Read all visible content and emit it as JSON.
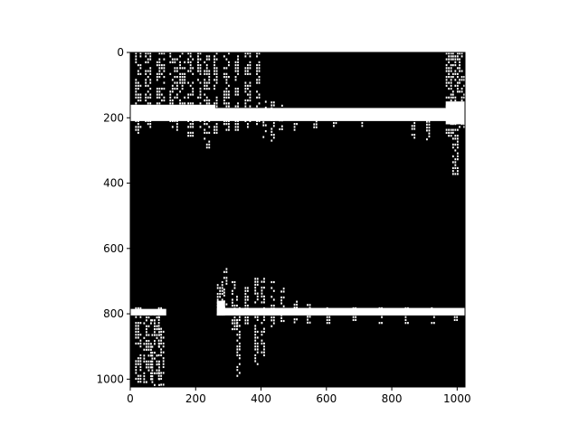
{
  "chart_data": {
    "type": "heatmap",
    "title": "",
    "xlabel": "",
    "ylabel": "",
    "xlim": [
      0,
      1024
    ],
    "ylim": [
      1024,
      0
    ],
    "x_ticks": [
      "0",
      "200",
      "400",
      "600",
      "800",
      "1000"
    ],
    "y_ticks": [
      "0",
      "200",
      "400",
      "600",
      "800",
      "1000"
    ],
    "x_tick_values": [
      0,
      200,
      400,
      600,
      800,
      1000
    ],
    "y_tick_values": [
      0,
      200,
      400,
      600,
      800,
      1000
    ],
    "colormap": [
      "#000000",
      "#ffffff"
    ],
    "grid": false,
    "features": [
      {
        "name": "top-horizontal-band",
        "x_range": [
          0,
          1024
        ],
        "y_range": [
          165,
          215
        ]
      },
      {
        "name": "top-vertical-streaks",
        "x_range": [
          0,
          460
        ],
        "y_range": [
          0,
          290
        ]
      },
      {
        "name": "top-right-streak",
        "x_range": [
          965,
          1024
        ],
        "y_range": [
          0,
          375
        ]
      },
      {
        "name": "bottom-horizontal-band",
        "x_range": [
          0,
          1024
        ],
        "y_range": [
          775,
          815
        ]
      },
      {
        "name": "bottom-left-streaks",
        "x_range": [
          15,
          110
        ],
        "y_range": [
          780,
          1024
        ]
      },
      {
        "name": "bottom-middle-streaks",
        "x_range": [
          265,
          500
        ],
        "y_range": [
          645,
          1005
        ]
      }
    ]
  }
}
